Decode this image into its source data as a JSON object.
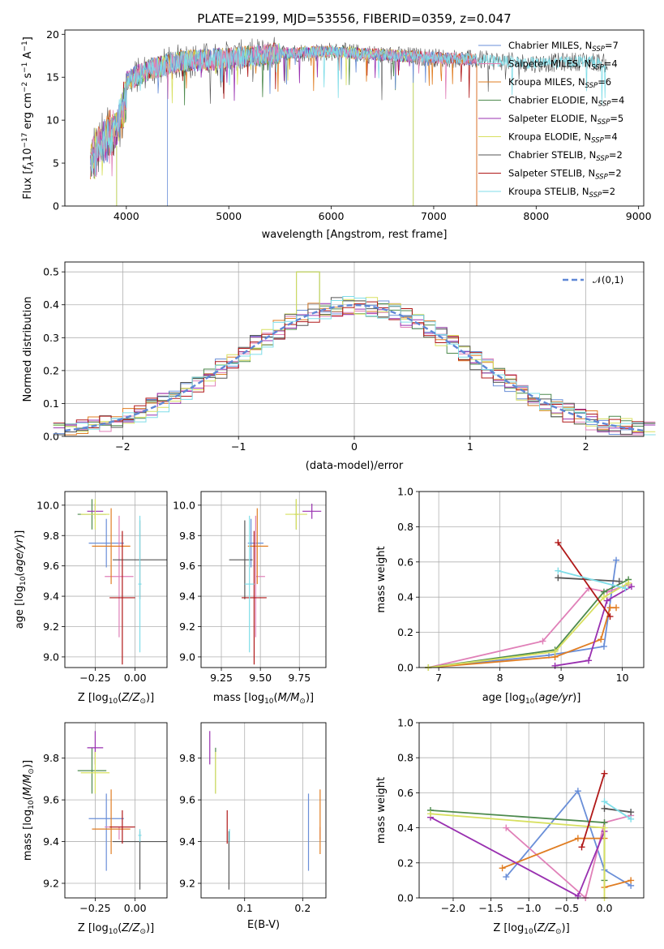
{
  "title": "PLATE=2199, MJD=53556, FIBERID=0359, z=0.047",
  "colors": {
    "Chabrier MILES": "#6a8fd8",
    "Salpeter MILES": "#e080b8",
    "Kroupa MILES": "#e07d22",
    "Chabrier ELODIE": "#4d8a4d",
    "Salpeter ELODIE": "#9930b0",
    "Kroupa ELODIE": "#d8e060",
    "Chabrier STELIB": "#555555",
    "Salpeter STELIB": "#b01818",
    "Kroupa STELIB": "#7fdde8"
  },
  "chart_data": [
    {
      "type": "line",
      "title": "PLATE=2199, MJD=53556, FIBERID=0359, z=0.047",
      "xlabel": "wavelength [Angstrom, rest frame]",
      "ylabel": "Flux [f_λ 10^-17 erg cm^-2 s^-1 A^-1]",
      "xlim": [
        3400,
        9050
      ],
      "ylim": [
        0,
        20.5
      ],
      "xticks": [
        "4000",
        "5000",
        "6000",
        "7000",
        "8000",
        "9000"
      ],
      "yticks": [
        "0",
        "5",
        "10",
        "15",
        "20"
      ],
      "legend": "right",
      "series": [
        {
          "name": "Chabrier MILES",
          "nssp": "7"
        },
        {
          "name": "Salpeter MILES",
          "nssp": "4"
        },
        {
          "name": "Kroupa MILES",
          "nssp": "6"
        },
        {
          "name": "Chabrier ELODIE",
          "nssp": "4"
        },
        {
          "name": "Salpeter ELODIE",
          "nssp": "5"
        },
        {
          "name": "Kroupa ELODIE",
          "nssp": "4"
        },
        {
          "name": "Chabrier STELIB",
          "nssp": "2"
        },
        {
          "name": "Salpeter STELIB",
          "nssp": "2"
        },
        {
          "name": "Kroupa STELIB",
          "nssp": "2"
        }
      ],
      "continuum": {
        "x": [
          3650,
          3900,
          4000,
          4200,
          4500,
          5000,
          5500,
          6000,
          6500,
          7000,
          7500,
          8000,
          8500,
          8700
        ],
        "y": [
          7.5,
          11.0,
          14.5,
          15.8,
          16.8,
          17.2,
          17.8,
          18.0,
          17.6,
          17.3,
          17.0,
          16.6,
          16.9,
          16.6
        ]
      }
    },
    {
      "type": "step",
      "xlabel": "(data-model)/error",
      "ylabel": "Normed distribution",
      "xlim": [
        -2.5,
        2.5
      ],
      "ylim": [
        0,
        0.53
      ],
      "xticks": [
        "−2",
        "−1",
        "0",
        "1",
        "2"
      ],
      "yticks": [
        "0.0",
        "0.1",
        "0.2",
        "0.3",
        "0.4",
        "0.5"
      ],
      "legend": "upper-right",
      "reference_curve": "𝒩(0,1)",
      "bin_width": 0.1
    },
    {
      "type": "errorbar",
      "xlabel": "Z [log10(Z/Z⊙)]",
      "ylabel": "age [log10(age/yr)]",
      "xlim": [
        -0.44,
        0.2
      ],
      "ylim": [
        8.93,
        10.09
      ],
      "xticks": [
        "−0.25",
        "0.00"
      ],
      "yticks": [
        "9.0",
        "9.2",
        "9.4",
        "9.6",
        "9.8",
        "10.0"
      ],
      "points": [
        {
          "series": "Chabrier MILES",
          "x": -0.18,
          "xerr": [
            0.11,
            0.11
          ],
          "y": 9.75,
          "yerr": [
            0.16,
            0.16
          ]
        },
        {
          "series": "Salpeter MILES",
          "x": -0.1,
          "xerr": [
            0.09,
            0.09
          ],
          "y": 9.53,
          "yerr": [
            0.4,
            0.4
          ]
        },
        {
          "series": "Kroupa MILES",
          "x": -0.15,
          "xerr": [
            0.12,
            0.12
          ],
          "y": 9.73,
          "yerr": [
            0.25,
            0.25
          ]
        },
        {
          "series": "Chabrier ELODIE",
          "x": -0.27,
          "xerr": [
            0.09,
            0.09
          ],
          "y": 9.94,
          "yerr": [
            0.1,
            0.1
          ]
        },
        {
          "series": "Salpeter ELODIE",
          "x": -0.25,
          "xerr": [
            0.05,
            0.05
          ],
          "y": 9.96,
          "yerr": [
            0.05,
            0.05
          ]
        },
        {
          "series": "Kroupa ELODIE",
          "x": -0.25,
          "xerr": [
            0.09,
            0.09
          ],
          "y": 9.94,
          "yerr": [
            0.1,
            0.1
          ]
        },
        {
          "series": "Chabrier STELIB",
          "x": 0.03,
          "xerr": [
            0.17,
            0.17
          ],
          "y": 9.64,
          "yerr": [
            0.26,
            0.26
          ]
        },
        {
          "series": "Salpeter STELIB",
          "x": -0.08,
          "xerr": [
            0.08,
            0.08
          ],
          "y": 9.39,
          "yerr": [
            0.44,
            0.44
          ]
        },
        {
          "series": "Kroupa STELIB",
          "x": 0.03,
          "xerr": [
            0.01,
            0.01
          ],
          "y": 9.48,
          "yerr": [
            0.45,
            0.45
          ]
        }
      ]
    },
    {
      "type": "errorbar",
      "xlabel": "mass [log10(M/M⊙)]",
      "xlim": [
        9.12,
        9.92
      ],
      "ylim": [
        8.93,
        10.09
      ],
      "xticks": [
        "9.25",
        "9.50",
        "9.75"
      ],
      "yticks": [
        "9.0",
        "9.2",
        "9.4",
        "9.6",
        "9.8",
        "10.0"
      ],
      "points": [
        {
          "series": "Chabrier MILES",
          "x": 9.44,
          "xerr": [
            0.02,
            0.08
          ],
          "y": 9.75,
          "yerr": [
            0.16,
            0.16
          ]
        },
        {
          "series": "Salpeter MILES",
          "x": 9.47,
          "xerr": [
            0.0,
            0.06
          ],
          "y": 9.53,
          "yerr": [
            0.4,
            0.4
          ]
        },
        {
          "series": "Kroupa MILES",
          "x": 9.48,
          "xerr": [
            0.06,
            0.07
          ],
          "y": 9.73,
          "yerr": [
            0.25,
            0.25
          ]
        },
        {
          "series": "Chabrier ELODIE",
          "x": 9.73,
          "xerr": [
            0.01,
            0.01
          ],
          "y": 9.94,
          "yerr": [
            0.1,
            0.1
          ]
        },
        {
          "series": "Salpeter ELODIE",
          "x": 9.83,
          "xerr": [
            0.06,
            0.06
          ],
          "y": 9.96,
          "yerr": [
            0.05,
            0.05
          ]
        },
        {
          "series": "Kroupa ELODIE",
          "x": 9.73,
          "xerr": [
            0.07,
            0.07
          ],
          "y": 9.94,
          "yerr": [
            0.1,
            0.1
          ]
        },
        {
          "series": "Chabrier STELIB",
          "x": 9.4,
          "xerr": [
            0.1,
            0.05
          ],
          "y": 9.64,
          "yerr": [
            0.26,
            0.26
          ]
        },
        {
          "series": "Salpeter STELIB",
          "x": 9.46,
          "xerr": [
            0.08,
            0.08
          ],
          "y": 9.39,
          "yerr": [
            0.44,
            0.44
          ]
        },
        {
          "series": "Kroupa STELIB",
          "x": 9.43,
          "xerr": [
            0.03,
            0.03
          ],
          "y": 9.48,
          "yerr": [
            0.45,
            0.45
          ]
        }
      ]
    },
    {
      "type": "line",
      "xlabel": "age [log10(age/yr)]",
      "ylabel": "mass weight",
      "xlim": [
        6.68,
        10.35
      ],
      "ylim": [
        0,
        1
      ],
      "xticks": [
        "7",
        "8",
        "9",
        "10"
      ],
      "yticks": [
        "0.0",
        "0.2",
        "0.4",
        "0.6",
        "0.8",
        "1.0"
      ],
      "grid": true,
      "series": [
        {
          "name": "Chabrier MILES",
          "x": [
            6.83,
            8.8,
            9.7,
            9.9
          ],
          "y": [
            0.0,
            0.07,
            0.12,
            0.61
          ]
        },
        {
          "name": "Salpeter MILES",
          "x": [
            6.83,
            8.7,
            9.45,
            9.75,
            10.1
          ],
          "y": [
            0.0,
            0.15,
            0.45,
            0.43,
            0.47
          ]
        },
        {
          "name": "Kroupa MILES",
          "x": [
            6.83,
            8.9,
            9.65,
            9.8,
            9.9
          ],
          "y": [
            0.0,
            0.06,
            0.16,
            0.34,
            0.34
          ]
        },
        {
          "name": "Chabrier ELODIE",
          "x": [
            6.83,
            8.9,
            9.7,
            10.1
          ],
          "y": [
            0.0,
            0.1,
            0.43,
            0.5
          ]
        },
        {
          "name": "Salpeter ELODIE",
          "x": [
            8.9,
            9.45,
            9.75,
            10.15
          ],
          "y": [
            0.01,
            0.04,
            0.38,
            0.46
          ]
        },
        {
          "name": "Kroupa ELODIE",
          "x": [
            6.83,
            8.9,
            9.7,
            10.1
          ],
          "y": [
            0.0,
            0.09,
            0.4,
            0.48
          ]
        },
        {
          "name": "Chabrier STELIB",
          "x": [
            8.95,
            9.95
          ],
          "y": [
            0.51,
            0.49
          ]
        },
        {
          "name": "Salpeter STELIB",
          "x": [
            8.95,
            9.8
          ],
          "y": [
            0.71,
            0.29
          ]
        },
        {
          "name": "Kroupa STELIB",
          "x": [
            8.95,
            10.05
          ],
          "y": [
            0.55,
            0.45
          ]
        }
      ]
    },
    {
      "type": "errorbar",
      "xlabel": "Z [log10(Z/Z⊙)]",
      "ylabel": "mass [log10(M/M⊙)]",
      "xlim": [
        -0.44,
        0.2
      ],
      "ylim": [
        9.13,
        9.97
      ],
      "xticks": [
        "−0.25",
        "0.00"
      ],
      "yticks": [
        "9.2",
        "9.4",
        "9.6",
        "9.8"
      ],
      "points": [
        {
          "series": "Chabrier MILES",
          "x": -0.18,
          "xerr": [
            0.11,
            0.11
          ],
          "y": 9.51,
          "yerr": [
            0.25,
            0.12
          ]
        },
        {
          "series": "Salpeter MILES",
          "x": -0.1,
          "xerr": [
            0.09,
            0.09
          ],
          "y": 9.47,
          "yerr": [
            0.06,
            0.0
          ]
        },
        {
          "series": "Kroupa MILES",
          "x": -0.15,
          "xerr": [
            0.12,
            0.12
          ],
          "y": 9.46,
          "yerr": [
            0.12,
            0.19
          ]
        },
        {
          "series": "Chabrier ELODIE",
          "x": -0.27,
          "xerr": [
            0.09,
            0.09
          ],
          "y": 9.74,
          "yerr": [
            0.11,
            0.11
          ]
        },
        {
          "series": "Salpeter ELODIE",
          "x": -0.25,
          "xerr": [
            0.05,
            0.05
          ],
          "y": 9.85,
          "yerr": [
            0.08,
            0.08
          ]
        },
        {
          "series": "Kroupa ELODIE",
          "x": -0.25,
          "xerr": [
            0.09,
            0.09
          ],
          "y": 9.73,
          "yerr": [
            0.1,
            0.1
          ]
        },
        {
          "series": "Chabrier STELIB",
          "x": 0.03,
          "xerr": [
            0.17,
            0.17
          ],
          "y": 9.4,
          "yerr": [
            0.23,
            0.05
          ]
        },
        {
          "series": "Salpeter STELIB",
          "x": -0.08,
          "xerr": [
            0.08,
            0.08
          ],
          "y": 9.47,
          "yerr": [
            0.08,
            0.08
          ]
        },
        {
          "series": "Kroupa STELIB",
          "x": 0.03,
          "xerr": [
            0.01,
            0.01
          ],
          "y": 9.43,
          "yerr": [
            0.03,
            0.03
          ]
        }
      ]
    },
    {
      "type": "errorbar",
      "xlabel": "E(B-V)",
      "xlim": [
        0.025,
        0.24
      ],
      "ylim": [
        9.13,
        9.97
      ],
      "xticks": [
        "0.1",
        "0.2"
      ],
      "yticks": [
        "9.2",
        "9.4",
        "9.6",
        "9.8"
      ],
      "points": [
        {
          "series": "Chabrier MILES",
          "x": 0.21,
          "y": 9.51,
          "yerr": [
            0.25,
            0.12
          ]
        },
        {
          "series": "Salpeter MILES",
          "x": 0.23,
          "y": 9.47,
          "yerr": [
            0.06,
            0.0
          ]
        },
        {
          "series": "Kroupa MILES",
          "x": 0.23,
          "y": 9.46,
          "yerr": [
            0.12,
            0.19
          ]
        },
        {
          "series": "Chabrier ELODIE",
          "x": 0.05,
          "y": 9.74,
          "yerr": [
            0.11,
            0.11
          ]
        },
        {
          "series": "Salpeter ELODIE",
          "x": 0.04,
          "y": 9.85,
          "yerr": [
            0.08,
            0.08
          ]
        },
        {
          "series": "Kroupa ELODIE",
          "x": 0.05,
          "y": 9.73,
          "yerr": [
            0.1,
            0.1
          ]
        },
        {
          "series": "Chabrier STELIB",
          "x": 0.073,
          "y": 9.4,
          "yerr": [
            0.23,
            0.05
          ]
        },
        {
          "series": "Salpeter STELIB",
          "x": 0.07,
          "y": 9.47,
          "yerr": [
            0.08,
            0.08
          ]
        },
        {
          "series": "Kroupa STELIB",
          "x": 0.074,
          "y": 9.43,
          "yerr": [
            0.03,
            0.03
          ]
        }
      ]
    },
    {
      "type": "line",
      "xlabel": "Z [log10(Z/Z⊙)]",
      "ylabel": "mass weight",
      "xlim": [
        -2.45,
        0.52
      ],
      "ylim": [
        0,
        1
      ],
      "xticks": [
        "−2.0",
        "−1.5",
        "−1.0",
        "−0.5",
        "0.0"
      ],
      "yticks": [
        "0.0",
        "0.2",
        "0.4",
        "0.6",
        "0.8",
        "1.0"
      ],
      "grid": true,
      "series": [
        {
          "name": "Chabrier MILES",
          "x": [
            -1.3,
            -0.35,
            0.0,
            0.35
          ],
          "y": [
            0.12,
            0.61,
            0.16,
            0.07
          ]
        },
        {
          "name": "Salpeter MILES",
          "x": [
            -1.3,
            -0.25,
            0.0,
            0.35
          ],
          "y": [
            0.4,
            0.0,
            0.43,
            0.47
          ]
        },
        {
          "name": "Kroupa MILES",
          "x": [
            -1.35,
            -0.35,
            0.0,
            0.0,
            0.35
          ],
          "y": [
            0.17,
            0.34,
            0.34,
            0.06,
            0.1
          ]
        },
        {
          "name": "Chabrier ELODIE",
          "x": [
            -2.3,
            0.0,
            0.0
          ],
          "y": [
            0.5,
            0.43,
            0.1
          ]
        },
        {
          "name": "Salpeter ELODIE",
          "x": [
            -2.3,
            -0.35,
            0.0
          ],
          "y": [
            0.46,
            0.01,
            0.38
          ]
        },
        {
          "name": "Kroupa ELODIE",
          "x": [
            -2.3,
            0.0,
            0.0
          ],
          "y": [
            0.48,
            0.4,
            0.0
          ]
        },
        {
          "name": "Chabrier STELIB",
          "x": [
            0.0,
            0.35
          ],
          "y": [
            0.51,
            0.49
          ]
        },
        {
          "name": "Salpeter STELIB",
          "x": [
            0.0,
            -0.3
          ],
          "y": [
            0.71,
            0.29
          ]
        },
        {
          "name": "Kroupa STELIB",
          "x": [
            0.0,
            0.35
          ],
          "y": [
            0.55,
            0.45
          ]
        }
      ]
    }
  ]
}
